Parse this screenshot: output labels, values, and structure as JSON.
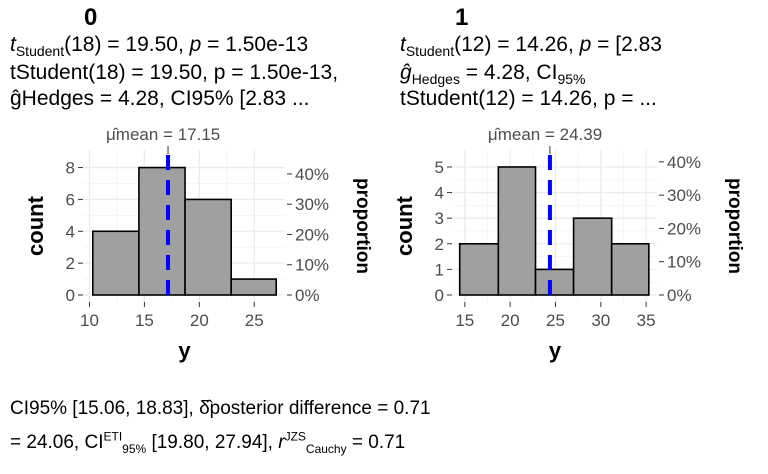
{
  "chart_data": [
    {
      "type": "bar",
      "title": "0",
      "subtitle": "tStudent(18) = 19.50, p = 1.50e-13, ĝHedges = 4.28, CI95% [2.83 ...",
      "mean_label": "μ̂mean = 17.15",
      "mean": 17.15,
      "bin_edges": [
        10.3,
        14.5,
        18.7,
        22.9,
        27.0
      ],
      "counts": [
        4,
        8,
        6,
        1
      ],
      "xlabel": "y",
      "ylabel": "count",
      "y2label": "proportion",
      "xlim": [
        9.5,
        27.8
      ],
      "ylim": [
        0,
        8.6
      ],
      "xticks": [
        10,
        15,
        20,
        25
      ],
      "yticks": [
        0,
        2,
        4,
        6,
        8
      ],
      "y2ticks": [
        "0%",
        "10%",
        "20%",
        "30%",
        "40%"
      ],
      "n": 19,
      "grid": true,
      "fill": "#a0a0a0",
      "mean_line_color": "#0000ff"
    },
    {
      "type": "bar",
      "title": "1",
      "subtitle": "tStudent(12) = 14.26, p = ...",
      "mean_label": "μ̂mean = 24.39",
      "mean": 24.39,
      "bin_edges": [
        14.44,
        18.7,
        22.8,
        27.0,
        31.2,
        35.3
      ],
      "counts": [
        2,
        5,
        1,
        3,
        2
      ],
      "xlabel": "y",
      "ylabel": "count",
      "y2label": "proportion",
      "xlim": [
        13.7,
        36.2
      ],
      "ylim": [
        0,
        5.35
      ],
      "xticks": [
        15,
        20,
        25,
        30,
        35
      ],
      "yticks": [
        0,
        1,
        2,
        3,
        4,
        5
      ],
      "y2ticks": [
        "0%",
        "10%",
        "20%",
        "30%",
        "40%"
      ],
      "n": 13,
      "grid": true,
      "fill": "#a0a0a0",
      "mean_line_color": "#0000ff"
    }
  ],
  "panels": [
    {
      "title": "0",
      "sub_a": "t",
      "sub_b": "Student",
      "sub_c": "(18) = 19.50, ",
      "sub_d": "p",
      "sub_e": " = 1.50e-13"
    },
    {
      "title": "1",
      "sub_a": "t",
      "sub_b": "Student",
      "sub_c": "(12) = 14.26, ",
      "sub_d": "p",
      "sub_e": " = [2.83",
      "overlay_a": "ĝ",
      "overlay_b": "Hedges",
      "overlay_c": " = 4.28, CI",
      "overlay_d": "95%"
    }
  ],
  "caption": {
    "left_overlap": "CI95% [15.06, 18.83], δ̂posterior difference = 0.71",
    "part1": " = 24.06, CI",
    "part1_sup": "ETI",
    "part1_sub": "95%",
    "part2": " [19.80, 27.94], ",
    "part3": "r",
    "part3_sup": "JZS",
    "part3_sub": "Cauchy",
    "part4": " = 0.71"
  }
}
